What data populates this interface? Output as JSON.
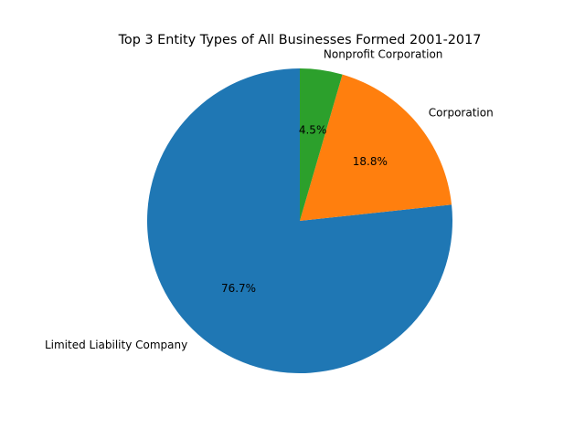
{
  "chart_data": {
    "type": "pie",
    "title": "Top 3 Entity Types of All Businesses Formed 2001-2017",
    "start_angle_deg": 90,
    "direction": "counterclockwise",
    "slices": [
      {
        "label": "Limited Liability Company",
        "value": 76.7,
        "pct_label": "76.7%",
        "color": "#1f77b4"
      },
      {
        "label": "Corporation",
        "value": 18.8,
        "pct_label": "18.8%",
        "color": "#ff7f0e"
      },
      {
        "label": "Nonprofit Corporation",
        "value": 4.5,
        "pct_label": "4.5%",
        "color": "#2ca02c"
      }
    ]
  }
}
